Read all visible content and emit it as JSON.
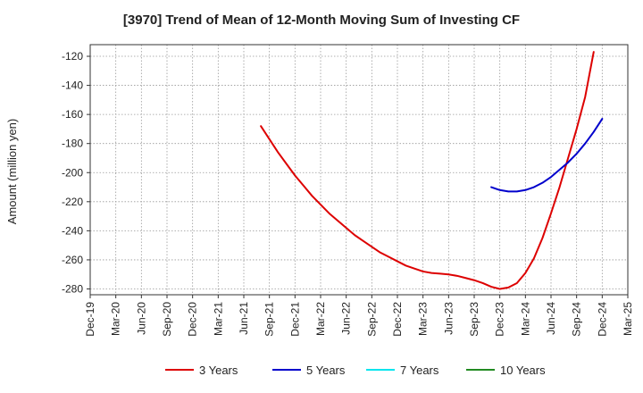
{
  "chart_data": {
    "type": "line",
    "title": "[3970]  Trend of Mean of 12-Month Moving Sum of Investing CF",
    "ylabel": "Amount (million yen)",
    "xlabel": "",
    "ylim": [
      -284,
      -112
    ],
    "yticks": [
      -280,
      -260,
      -240,
      -220,
      -200,
      -180,
      -160,
      -140,
      -120
    ],
    "x_ticks": [
      "Dec-19",
      "Mar-20",
      "Jun-20",
      "Sep-20",
      "Dec-20",
      "Mar-21",
      "Jun-21",
      "Sep-21",
      "Dec-21",
      "Mar-22",
      "Jun-22",
      "Sep-22",
      "Dec-22",
      "Mar-23",
      "Jun-23",
      "Sep-23",
      "Dec-23",
      "Mar-24",
      "Jun-24",
      "Sep-24",
      "Dec-24",
      "Mar-25"
    ],
    "grid": true,
    "legend_position": "bottom",
    "series": [
      {
        "name": "3 Years",
        "color": "#dd0000",
        "points": [
          [
            "Aug-21",
            -168
          ],
          [
            "Sep-21",
            -177
          ],
          [
            "Oct-21",
            -186
          ],
          [
            "Nov-21",
            -194
          ],
          [
            "Dec-21",
            -202
          ],
          [
            "Jan-22",
            -209
          ],
          [
            "Feb-22",
            -216
          ],
          [
            "Mar-22",
            -222
          ],
          [
            "Apr-22",
            -228
          ],
          [
            "May-22",
            -233
          ],
          [
            "Jun-22",
            -238
          ],
          [
            "Jul-22",
            -243
          ],
          [
            "Aug-22",
            -247
          ],
          [
            "Sep-22",
            -251
          ],
          [
            "Oct-22",
            -255
          ],
          [
            "Nov-22",
            -258
          ],
          [
            "Dec-22",
            -261
          ],
          [
            "Jan-23",
            -264
          ],
          [
            "Feb-23",
            -266
          ],
          [
            "Mar-23",
            -268
          ],
          [
            "Apr-23",
            -269
          ],
          [
            "May-23",
            -269.5
          ],
          [
            "Jun-23",
            -270
          ],
          [
            "Jul-23",
            -271
          ],
          [
            "Aug-23",
            -272.5
          ],
          [
            "Sep-23",
            -274
          ],
          [
            "Oct-23",
            -276
          ],
          [
            "Nov-23",
            -278.5
          ],
          [
            "Dec-23",
            -280
          ],
          [
            "Jan-24",
            -279
          ],
          [
            "Feb-24",
            -276
          ],
          [
            "Mar-24",
            -269
          ],
          [
            "Apr-24",
            -259
          ],
          [
            "May-24",
            -245
          ],
          [
            "Jun-24",
            -228
          ],
          [
            "Jul-24",
            -210
          ],
          [
            "Aug-24",
            -190
          ],
          [
            "Sep-24",
            -170
          ],
          [
            "Oct-24",
            -148
          ],
          [
            "Nov-24",
            -117
          ]
        ]
      },
      {
        "name": "5 Years",
        "color": "#0000cc",
        "points": [
          [
            "Nov-23",
            -210
          ],
          [
            "Dec-23",
            -212
          ],
          [
            "Jan-24",
            -213
          ],
          [
            "Feb-24",
            -213
          ],
          [
            "Mar-24",
            -212
          ],
          [
            "Apr-24",
            -210
          ],
          [
            "May-24",
            -207
          ],
          [
            "Jun-24",
            -203
          ],
          [
            "Jul-24",
            -198
          ],
          [
            "Aug-24",
            -193
          ],
          [
            "Sep-24",
            -187
          ],
          [
            "Oct-24",
            -180
          ],
          [
            "Nov-24",
            -172
          ],
          [
            "Dec-24",
            -163
          ]
        ]
      },
      {
        "name": "7 Years",
        "color": "#00e5ee",
        "points": []
      },
      {
        "name": "10 Years",
        "color": "#228b22",
        "points": []
      }
    ]
  }
}
